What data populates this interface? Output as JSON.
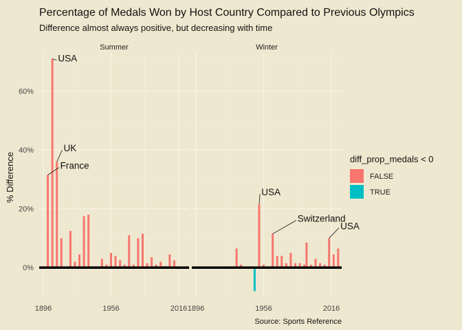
{
  "chart_data": {
    "type": "bar",
    "title": "Percentage of Medals Won by Host Country Compared to Previous Olympics",
    "subtitle": "Difference almost always positive, but decreasing with time",
    "ylabel": "% Difference",
    "xlabel": "",
    "caption": "Source: Sports Reference",
    "ylim": [
      -10,
      73
    ],
    "y_ticks": [
      0,
      20,
      40,
      60
    ],
    "y_tick_labels": [
      "0%",
      "20%",
      "40%",
      "60%"
    ],
    "xlim": [
      1896,
      2016
    ],
    "x_ticks": [
      1896,
      1956,
      2016
    ],
    "x_tick_labels": [
      "1896",
      "1956",
      "2016"
    ],
    "legend": {
      "title": "diff_prop_medals < 0",
      "position": "right",
      "entries": [
        {
          "label": "FALSE",
          "color": "#f8766d"
        },
        {
          "label": "TRUE",
          "color": "#00bfc4"
        }
      ]
    },
    "panels": [
      {
        "name": "Summer",
        "bars": [
          {
            "year": 1900,
            "value": 31.5,
            "negative": false
          },
          {
            "year": 1904,
            "value": 71,
            "negative": false
          },
          {
            "year": 1908,
            "value": 36,
            "negative": false
          },
          {
            "year": 1912,
            "value": 10,
            "negative": false
          },
          {
            "year": 1920,
            "value": 12.5,
            "negative": false
          },
          {
            "year": 1924,
            "value": 2,
            "negative": false
          },
          {
            "year": 1928,
            "value": 4.5,
            "negative": false
          },
          {
            "year": 1932,
            "value": 17.5,
            "negative": false
          },
          {
            "year": 1936,
            "value": 18,
            "negative": false
          },
          {
            "year": 1948,
            "value": 3,
            "negative": false
          },
          {
            "year": 1952,
            "value": 1,
            "negative": false
          },
          {
            "year": 1956,
            "value": 5,
            "negative": false
          },
          {
            "year": 1960,
            "value": 4,
            "negative": false
          },
          {
            "year": 1964,
            "value": 2.5,
            "negative": false
          },
          {
            "year": 1968,
            "value": 1,
            "negative": false
          },
          {
            "year": 1972,
            "value": 11,
            "negative": false
          },
          {
            "year": 1976,
            "value": 1,
            "negative": false
          },
          {
            "year": 1980,
            "value": 10,
            "negative": false
          },
          {
            "year": 1984,
            "value": 11.5,
            "negative": false
          },
          {
            "year": 1988,
            "value": 1.5,
            "negative": false
          },
          {
            "year": 1992,
            "value": 3.5,
            "negative": false
          },
          {
            "year": 1996,
            "value": 1,
            "negative": false
          },
          {
            "year": 2000,
            "value": 2,
            "negative": false
          },
          {
            "year": 2004,
            "value": 0.5,
            "negative": false
          },
          {
            "year": 2008,
            "value": 4.5,
            "negative": false
          },
          {
            "year": 2012,
            "value": 2.5,
            "negative": false
          },
          {
            "year": 2016,
            "value": -0.5,
            "negative": true
          }
        ],
        "labels": [
          {
            "text": "USA",
            "year": 1904,
            "value": 71,
            "ann_year": 1909,
            "ann_value": 71
          },
          {
            "text": "UK",
            "year": 1908,
            "value": 36,
            "ann_year": 1914,
            "ann_value": 40.5
          },
          {
            "text": "France",
            "year": 1900,
            "value": 31.5,
            "ann_year": 1911,
            "ann_value": 34.5
          }
        ]
      },
      {
        "name": "Winter",
        "bars": [
          {
            "year": 1932,
            "value": 6.5,
            "negative": false
          },
          {
            "year": 1936,
            "value": 1,
            "negative": false
          },
          {
            "year": 1948,
            "value": -8,
            "negative": true
          },
          {
            "year": 1952,
            "value": 21.5,
            "negative": false
          },
          {
            "year": 1956,
            "value": 1,
            "negative": false
          },
          {
            "year": 1964,
            "value": 11.5,
            "negative": false
          },
          {
            "year": 1968,
            "value": 4,
            "negative": false
          },
          {
            "year": 1972,
            "value": 4,
            "negative": false
          },
          {
            "year": 1976,
            "value": 1.5,
            "negative": false
          },
          {
            "year": 1980,
            "value": 5,
            "negative": false
          },
          {
            "year": 1984,
            "value": 1.5,
            "negative": false
          },
          {
            "year": 1988,
            "value": 1.5,
            "negative": false
          },
          {
            "year": 1992,
            "value": 1,
            "negative": false
          },
          {
            "year": 1994,
            "value": 8.5,
            "negative": false
          },
          {
            "year": 1998,
            "value": 1,
            "negative": false
          },
          {
            "year": 2002,
            "value": 3,
            "negative": false
          },
          {
            "year": 2006,
            "value": 1.5,
            "negative": false
          },
          {
            "year": 2010,
            "value": 1,
            "negative": false
          },
          {
            "year": 2014,
            "value": 10,
            "negative": false
          },
          {
            "year": 2018,
            "value": 4.5,
            "negative": false
          },
          {
            "year": 2022,
            "value": 6.5,
            "negative": false
          }
        ],
        "labels": [
          {
            "text": "USA",
            "year": 1952,
            "value": 21.5,
            "ann_year": 1954,
            "ann_value": 25.5
          },
          {
            "text": "Switzerland",
            "year": 1964,
            "value": 11.5,
            "ann_year": 1986,
            "ann_value": 16.5
          },
          {
            "text": "USA",
            "year": 2014,
            "value": 10,
            "ann_year": 2024,
            "ann_value": 14
          }
        ]
      }
    ]
  }
}
